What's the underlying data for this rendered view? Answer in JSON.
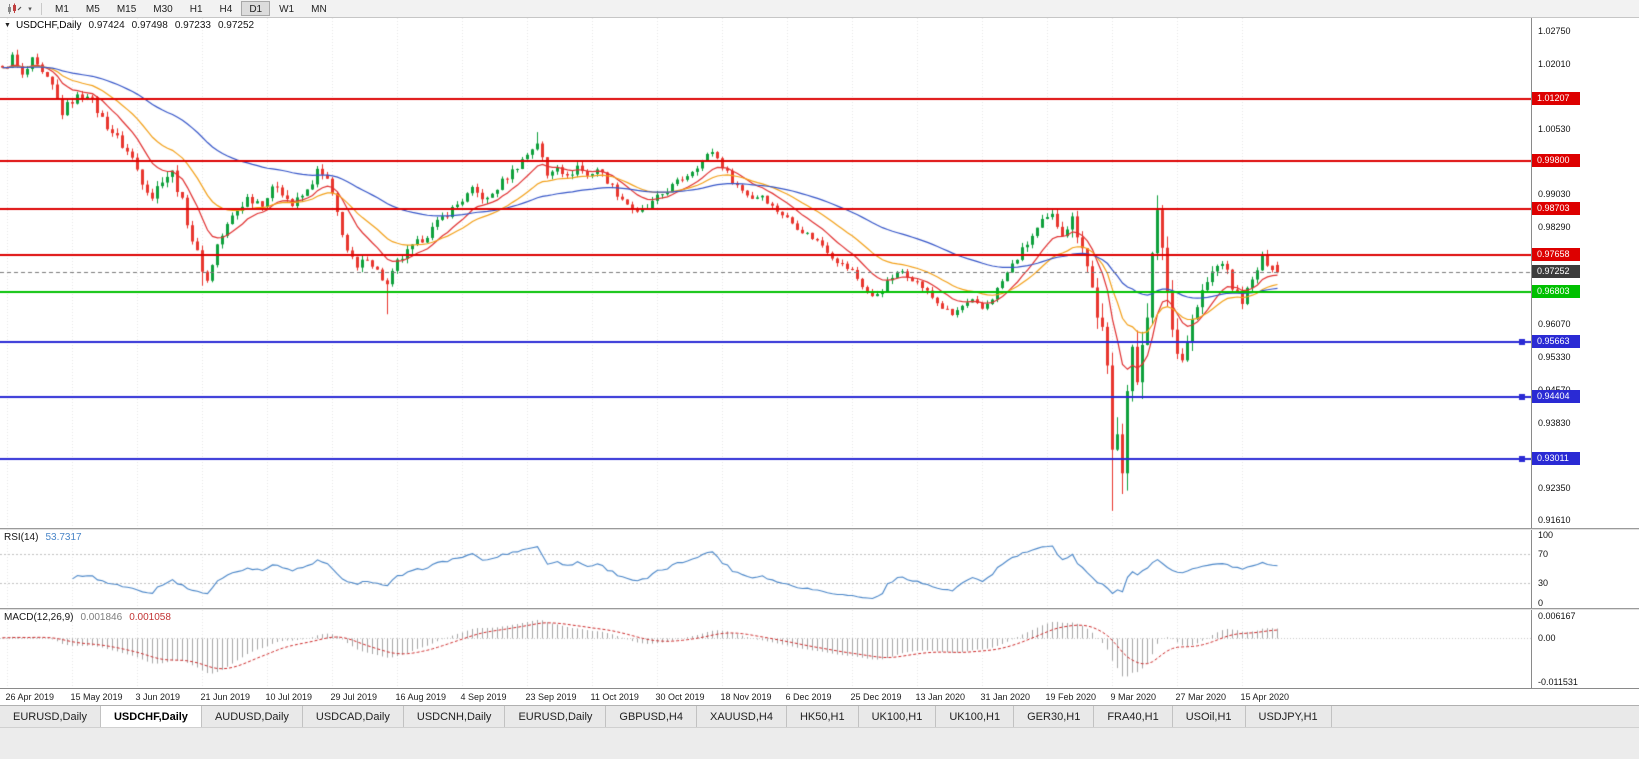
{
  "toolbar": {
    "timeframes": [
      "M1",
      "M5",
      "M15",
      "M30",
      "H1",
      "H4",
      "D1",
      "W1",
      "MN"
    ],
    "active_timeframe": "D1"
  },
  "price_pane": {
    "title": "USDCHF,Daily",
    "ohlc": {
      "open": "0.97424",
      "high": "0.97498",
      "low": "0.97233",
      "close": "0.97252"
    }
  },
  "rsi_pane": {
    "label": "RSI(14)",
    "value": "53.7317"
  },
  "macd_pane": {
    "label": "MACD(12,26,9)",
    "macd_value": "0.001846",
    "signal_value": "0.001058"
  },
  "tabs": {
    "active_index": 1,
    "items": [
      "EURUSD,Daily",
      "USDCHF,Daily",
      "AUDUSD,Daily",
      "USDCAD,Daily",
      "USDCNH,Daily",
      "EURUSD,Daily",
      "GBPUSD,H4",
      "XAUUSD,H4",
      "HK50,H1",
      "UK100,H1",
      "UK100,H1",
      "GER30,H1",
      "FRA40,H1",
      "USOil,H1",
      "USDJPY,H1"
    ]
  },
  "chart_data": {
    "type": "candlestick",
    "symbol": "USDCHF",
    "timeframe": "Daily",
    "candle_count": 256,
    "price_top": 1.0305,
    "price_bottom": 0.9143,
    "current_price": 0.97252,
    "y_ticks": [
      1.0275,
      1.0201,
      1.0053,
      0.9903,
      0.9829,
      0.9607,
      0.9533,
      0.9457,
      0.9383,
      0.9235,
      0.9161
    ],
    "hlines": [
      {
        "price": 1.01207,
        "color": "#dd0000",
        "width": 2
      },
      {
        "price": 0.998,
        "color": "#dd0000",
        "width": 2
      },
      {
        "price": 0.98703,
        "color": "#dd0000",
        "width": 2
      },
      {
        "price": 0.97658,
        "color": "#dd0000",
        "width": 2
      },
      {
        "price": 0.96803,
        "color": "#00c000",
        "width": 2
      },
      {
        "price": 0.95663,
        "color": "#2a2ad4",
        "width": 2,
        "handles": true
      },
      {
        "price": 0.94404,
        "color": "#2a2ad4",
        "width": 2,
        "handles": true
      },
      {
        "price": 0.93011,
        "color": "#2a2ad4",
        "width": 2,
        "handles": true
      }
    ],
    "x_labels": [
      "26 Apr 2019",
      "15 May 2019",
      "3 Jun 2019",
      "21 Jun 2019",
      "10 Jul 2019",
      "29 Jul 2019",
      "16 Aug 2019",
      "4 Sep 2019",
      "23 Sep 2019",
      "11 Oct 2019",
      "30 Oct 2019",
      "18 Nov 2019",
      "6 Dec 2019",
      "25 Dec 2019",
      "13 Jan 2020",
      "31 Jan 2020",
      "19 Feb 2020",
      "9 Mar 2020",
      "27 Mar 2020",
      "15 Apr 2020"
    ],
    "first_label_index": 1,
    "label_step": 13,
    "close_anchors": [
      [
        0,
        1.0185
      ],
      [
        2,
        1.0215
      ],
      [
        4,
        1.017
      ],
      [
        6,
        1.0205
      ],
      [
        8,
        1.0175
      ],
      [
        10,
        1.0148
      ],
      [
        12,
        1.009
      ],
      [
        14,
        1.0118
      ],
      [
        17,
        1.0135
      ],
      [
        20,
        1.0075
      ],
      [
        23,
        1.003
      ],
      [
        26,
        0.9985
      ],
      [
        28,
        0.9935
      ],
      [
        30,
        0.9898
      ],
      [
        32,
        0.994
      ],
      [
        34,
        0.9952
      ],
      [
        36,
        0.9885
      ],
      [
        38,
        0.98
      ],
      [
        40,
        0.9735
      ],
      [
        41,
        0.9705
      ],
      [
        43,
        0.9788
      ],
      [
        46,
        0.9852
      ],
      [
        49,
        0.9895
      ],
      [
        52,
        0.9885
      ],
      [
        55,
        0.9925
      ],
      [
        58,
        0.9878
      ],
      [
        61,
        0.991
      ],
      [
        63,
        0.9955
      ],
      [
        65,
        0.9935
      ],
      [
        67,
        0.986
      ],
      [
        69,
        0.9775
      ],
      [
        71,
        0.9732
      ],
      [
        73,
        0.9762
      ],
      [
        75,
        0.9728
      ],
      [
        77,
        0.9695
      ],
      [
        79,
        0.9748
      ],
      [
        82,
        0.9782
      ],
      [
        85,
        0.9812
      ],
      [
        88,
        0.985
      ],
      [
        91,
        0.988
      ],
      [
        94,
        0.9912
      ],
      [
        97,
        0.989
      ],
      [
        100,
        0.9932
      ],
      [
        103,
        0.9968
      ],
      [
        105,
        0.9995
      ],
      [
        107,
        1.0022
      ],
      [
        109,
        0.9945
      ],
      [
        111,
        0.9972
      ],
      [
        113,
        0.994
      ],
      [
        115,
        0.9968
      ],
      [
        117,
        0.9945
      ],
      [
        119,
        0.9962
      ],
      [
        121,
        0.9935
      ],
      [
        123,
        0.9905
      ],
      [
        125,
        0.9882
      ],
      [
        127,
        0.9858
      ],
      [
        129,
        0.9872
      ],
      [
        131,
        0.9895
      ],
      [
        134,
        0.9922
      ],
      [
        137,
        0.9948
      ],
      [
        140,
        0.998
      ],
      [
        142,
        1.0002
      ],
      [
        144,
        0.9968
      ],
      [
        146,
        0.9935
      ],
      [
        148,
        0.9912
      ],
      [
        150,
        0.9895
      ],
      [
        152,
        0.9902
      ],
      [
        154,
        0.9875
      ],
      [
        156,
        0.9858
      ],
      [
        158,
        0.9838
      ],
      [
        160,
        0.982
      ],
      [
        162,
        0.9805
      ],
      [
        164,
        0.9788
      ],
      [
        166,
        0.9762
      ],
      [
        168,
        0.9742
      ],
      [
        170,
        0.9728
      ],
      [
        172,
        0.9695
      ],
      [
        174,
        0.9668
      ],
      [
        176,
        0.9688
      ],
      [
        178,
        0.9715
      ],
      [
        180,
        0.9728
      ],
      [
        182,
        0.9712
      ],
      [
        184,
        0.9692
      ],
      [
        186,
        0.9668
      ],
      [
        188,
        0.9645
      ],
      [
        190,
        0.9628
      ],
      [
        192,
        0.9648
      ],
      [
        194,
        0.9658
      ],
      [
        196,
        0.9642
      ],
      [
        198,
        0.9668
      ],
      [
        200,
        0.9705
      ],
      [
        202,
        0.9742
      ],
      [
        204,
        0.9775
      ],
      [
        206,
        0.9808
      ],
      [
        208,
        0.9838
      ],
      [
        210,
        0.9852
      ],
      [
        212,
        0.9818
      ],
      [
        214,
        0.9845
      ],
      [
        216,
        0.9792
      ],
      [
        218,
        0.9688
      ],
      [
        220,
        0.9582
      ],
      [
        221,
        0.9485
      ],
      [
        222,
        0.931
      ],
      [
        223,
        0.9388
      ],
      [
        224,
        0.9302
      ],
      [
        225,
        0.9455
      ],
      [
        226,
        0.9528
      ],
      [
        227,
        0.948
      ],
      [
        228,
        0.9585
      ],
      [
        229,
        0.9648
      ],
      [
        230,
        0.9752
      ],
      [
        231,
        0.9845
      ],
      [
        232,
        0.9792
      ],
      [
        233,
        0.9682
      ],
      [
        234,
        0.9595
      ],
      [
        235,
        0.9562
      ],
      [
        236,
        0.9528
      ],
      [
        238,
        0.9615
      ],
      [
        240,
        0.9678
      ],
      [
        242,
        0.9725
      ],
      [
        244,
        0.9752
      ],
      [
        246,
        0.9692
      ],
      [
        248,
        0.9662
      ],
      [
        250,
        0.9705
      ],
      [
        252,
        0.9758
      ],
      [
        254,
        0.9738
      ],
      [
        255,
        0.9725
      ]
    ],
    "volatility_anchors": [
      [
        0,
        0.0024
      ],
      [
        40,
        0.0024
      ],
      [
        80,
        0.002
      ],
      [
        120,
        0.0018
      ],
      [
        160,
        0.0015
      ],
      [
        200,
        0.0016
      ],
      [
        212,
        0.0026
      ],
      [
        218,
        0.0048
      ],
      [
        222,
        0.0092
      ],
      [
        226,
        0.0082
      ],
      [
        231,
        0.0072
      ],
      [
        236,
        0.0048
      ],
      [
        240,
        0.003
      ],
      [
        248,
        0.0022
      ],
      [
        255,
        0.0018
      ]
    ],
    "forced_candles": [
      {
        "index": 2,
        "h": 1.0227
      },
      {
        "index": 40,
        "l": 0.9695
      },
      {
        "index": 77,
        "l": 0.963
      },
      {
        "index": 107,
        "h": 1.0045
      },
      {
        "index": 222,
        "l": 0.9182
      },
      {
        "index": 231,
        "h": 0.9901
      },
      {
        "index": 255,
        "o": 0.97424,
        "h": 0.97498,
        "l": 0.97233,
        "c": 0.97252
      }
    ],
    "moving_averages": [
      {
        "period": 10,
        "color": "#e03030"
      },
      {
        "period": 21,
        "color": "#f2a019"
      },
      {
        "period": 55,
        "color": "#3555c8"
      }
    ],
    "rsi": {
      "period": 14,
      "current": 53.7317,
      "levels": [
        70,
        30
      ],
      "axis_values": [
        100,
        70,
        30,
        0
      ]
    },
    "macd": {
      "fast": 12,
      "slow": 26,
      "signal_period": 9,
      "current_macd": 0.001846,
      "current_signal": 0.001058,
      "axis_top_value": 0.006167,
      "axis_bottom_value": -0.011531,
      "axis_top": "0.006167",
      "axis_zero": "0.00",
      "axis_bottom": "-0.011531"
    },
    "colors": {
      "bull": "#0fa03c",
      "bear": "#e8362e",
      "grid": "#e7e7e7",
      "current_line": "#7a7a7a",
      "current_badge": "#3c3c3c",
      "rsi_line": "#4a86c8",
      "rsi_level": "#c0c0c0",
      "macd_hist": "#a6a6a6",
      "macd_signal": "#cc2a2a"
    }
  }
}
